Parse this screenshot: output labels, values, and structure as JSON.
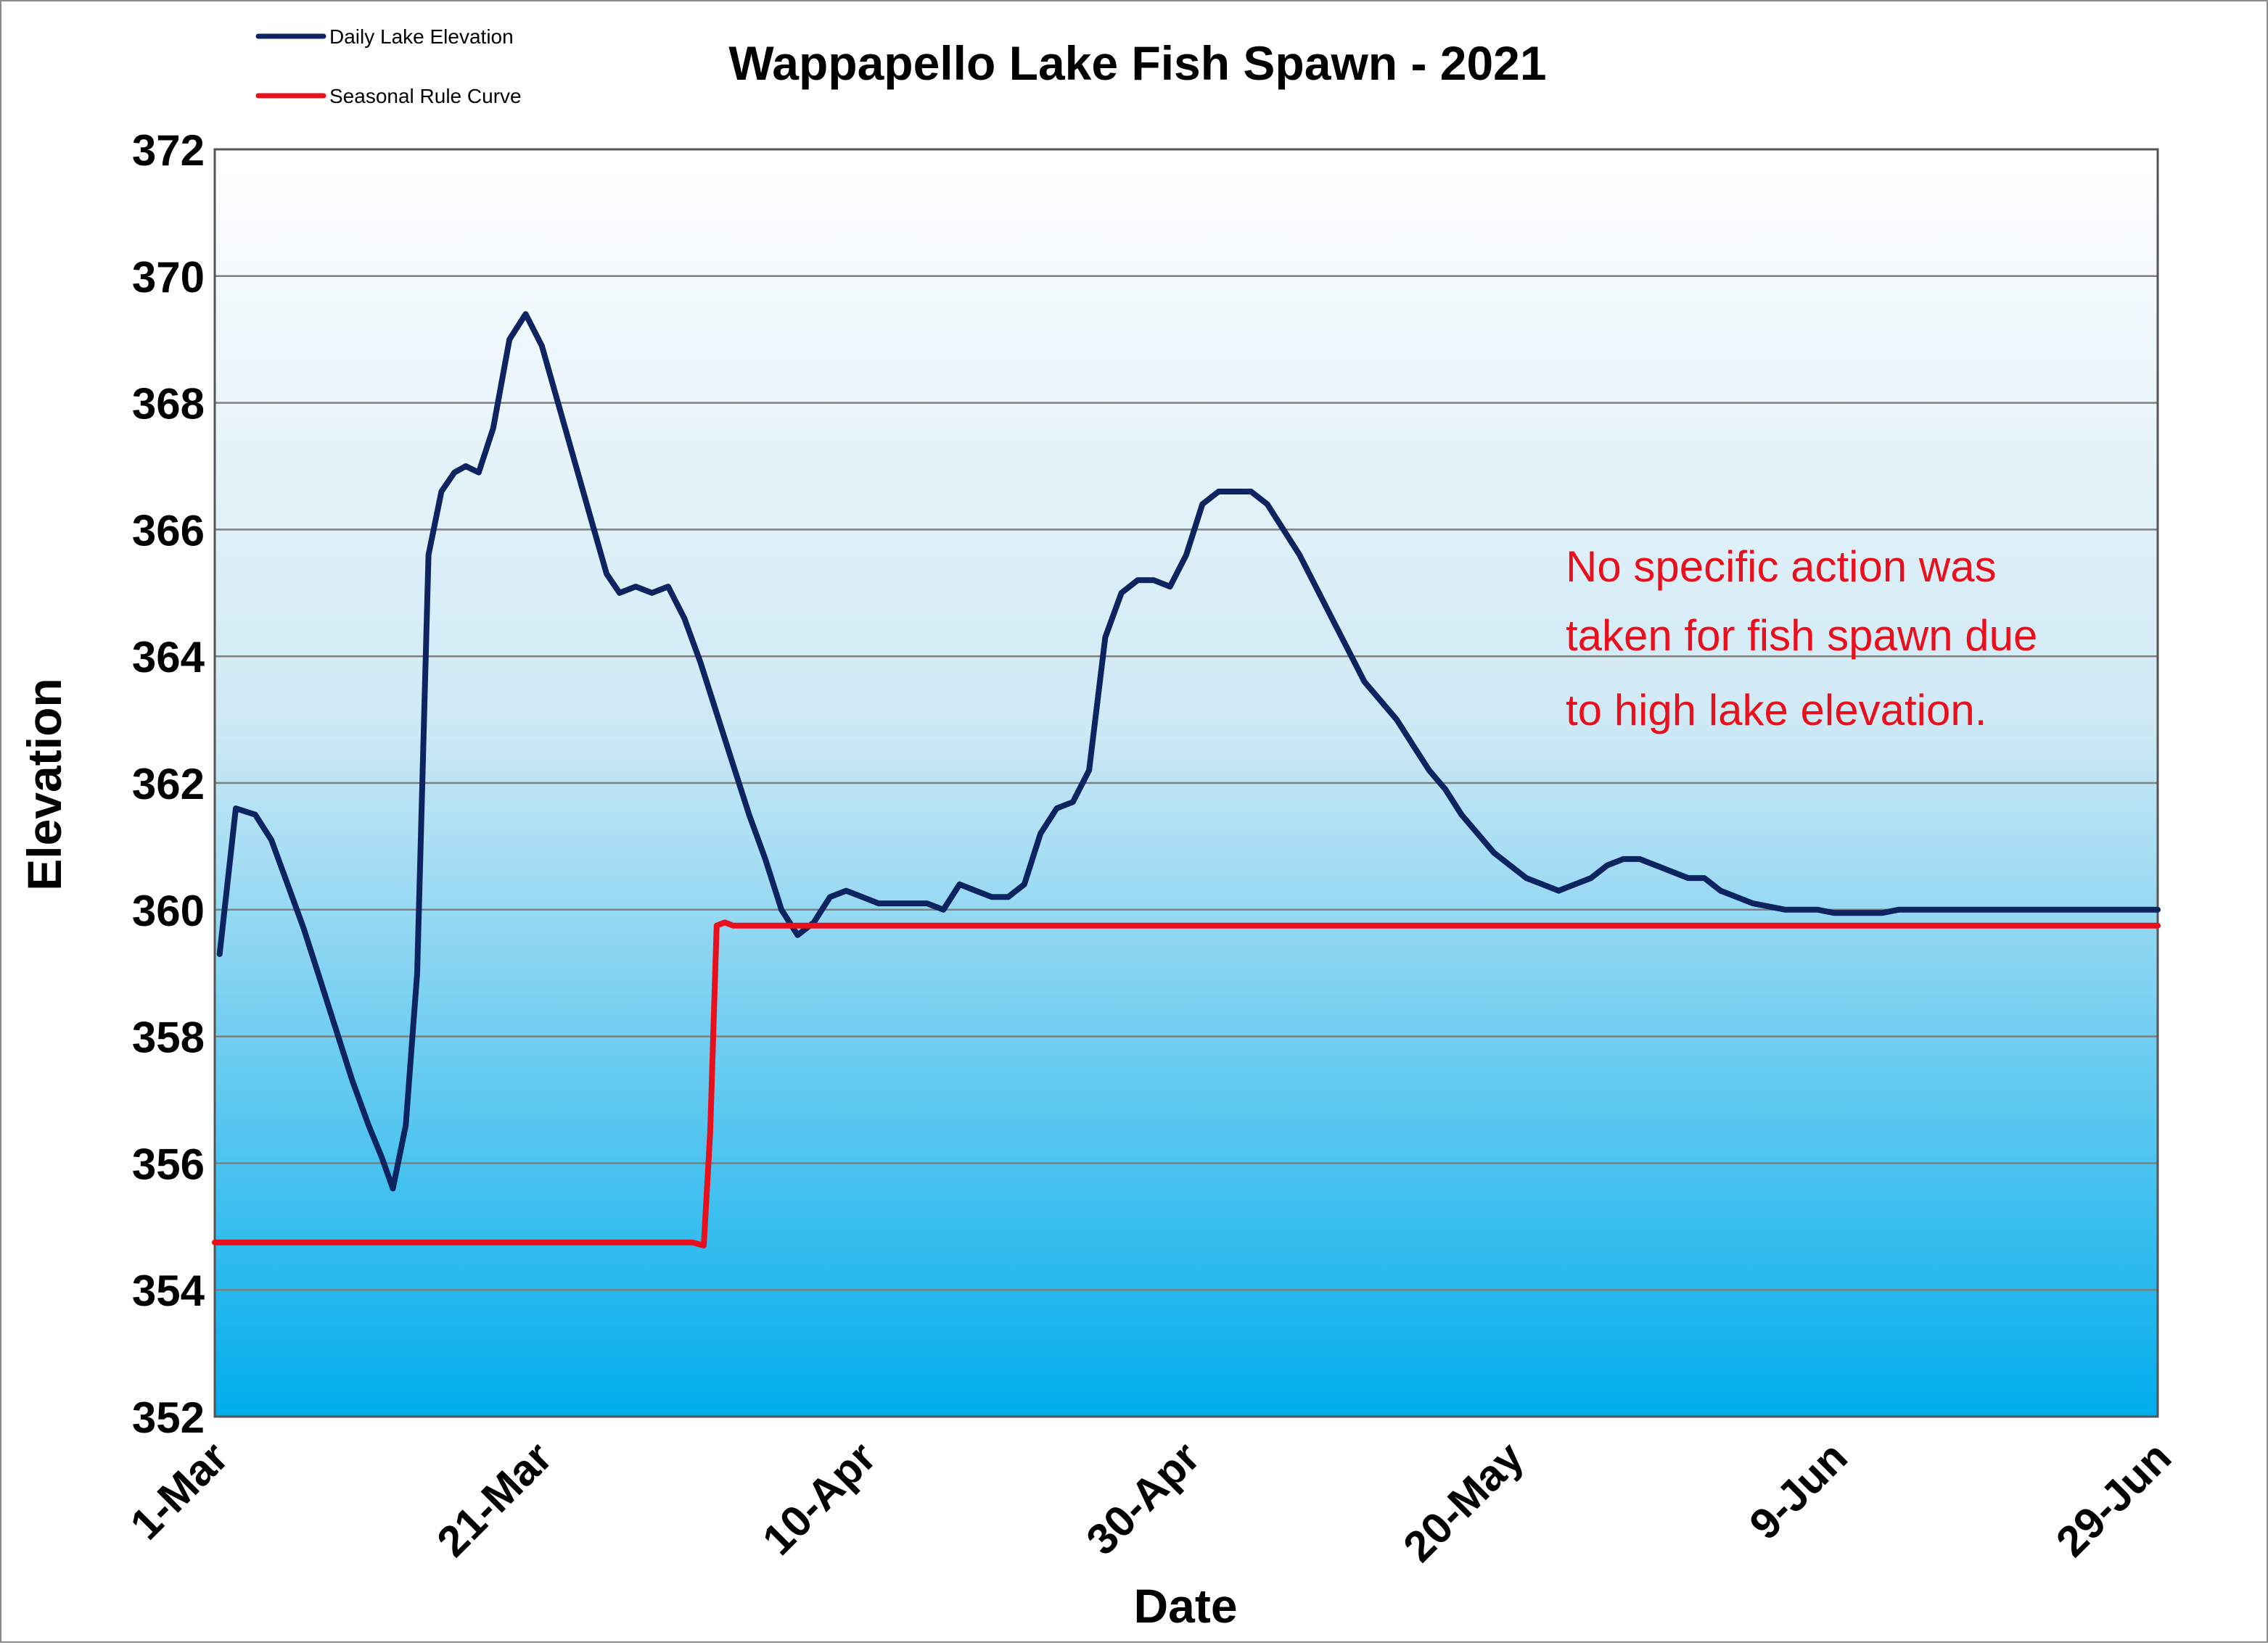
{
  "chart_data": {
    "type": "line",
    "title": "Wappapello Lake Fish Spawn - 2021",
    "xlabel": "Date",
    "ylabel": "Elevation",
    "ylim": [
      352,
      372
    ],
    "yticks": [
      352,
      354,
      356,
      358,
      360,
      362,
      364,
      366,
      368,
      370,
      372
    ],
    "xlim_day": [
      0,
      120
    ],
    "xticks": [
      {
        "day": 0,
        "label": "1-Mar"
      },
      {
        "day": 20,
        "label": "21-Mar"
      },
      {
        "day": 40,
        "label": "10-Apr"
      },
      {
        "day": 60,
        "label": "30-Apr"
      },
      {
        "day": 80,
        "label": "20-May"
      },
      {
        "day": 100,
        "label": "9-Jun"
      },
      {
        "day": 120,
        "label": "29-Jun"
      }
    ],
    "grid": "horizontal",
    "legend_position": "top-left",
    "annotation": {
      "lines": [
        "No specific action was",
        "taken for fish spawn due",
        "to high lake elevation."
      ],
      "color": "#e8101c"
    },
    "series": [
      {
        "name": "Daily Lake Elevation",
        "color": "#0d2461",
        "points": [
          [
            0.3,
            359.3
          ],
          [
            1.3,
            361.6
          ],
          [
            2.5,
            361.5
          ],
          [
            3.5,
            361.1
          ],
          [
            4.5,
            360.4
          ],
          [
            5.5,
            359.7
          ],
          [
            6.5,
            358.9
          ],
          [
            7.5,
            358.1
          ],
          [
            8.5,
            357.3
          ],
          [
            9.5,
            356.6
          ],
          [
            10.3,
            356.1
          ],
          [
            11.0,
            355.6
          ],
          [
            11.8,
            356.6
          ],
          [
            12.5,
            359.0
          ],
          [
            13.2,
            365.6
          ],
          [
            14.0,
            366.6
          ],
          [
            14.8,
            366.9
          ],
          [
            15.5,
            367.0
          ],
          [
            16.3,
            366.9
          ],
          [
            17.2,
            367.6
          ],
          [
            18.2,
            369.0
          ],
          [
            19.2,
            369.4
          ],
          [
            20.2,
            368.9
          ],
          [
            21.2,
            368.0
          ],
          [
            22.2,
            367.1
          ],
          [
            23.2,
            366.2
          ],
          [
            24.2,
            365.3
          ],
          [
            25.0,
            365.0
          ],
          [
            26.0,
            365.1
          ],
          [
            27.0,
            365.0
          ],
          [
            28.0,
            365.1
          ],
          [
            29.0,
            364.6
          ],
          [
            30.0,
            363.9
          ],
          [
            31.0,
            363.1
          ],
          [
            32.0,
            362.3
          ],
          [
            33.0,
            361.5
          ],
          [
            34.0,
            360.8
          ],
          [
            35.0,
            360.0
          ],
          [
            36.0,
            359.6
          ],
          [
            37.0,
            359.8
          ],
          [
            38.0,
            360.2
          ],
          [
            39.0,
            360.3
          ],
          [
            40.0,
            360.2
          ],
          [
            41.0,
            360.1
          ],
          [
            42.0,
            360.1
          ],
          [
            43.0,
            360.1
          ],
          [
            44.0,
            360.1
          ],
          [
            45.0,
            360.0
          ],
          [
            46.0,
            360.4
          ],
          [
            47.0,
            360.3
          ],
          [
            48.0,
            360.2
          ],
          [
            49.0,
            360.2
          ],
          [
            50.0,
            360.4
          ],
          [
            51.0,
            361.2
          ],
          [
            52.0,
            361.6
          ],
          [
            53.0,
            361.7
          ],
          [
            54.0,
            362.2
          ],
          [
            55.0,
            364.3
          ],
          [
            56.0,
            365.0
          ],
          [
            57.0,
            365.2
          ],
          [
            58.0,
            365.2
          ],
          [
            59.0,
            365.1
          ],
          [
            60.0,
            365.6
          ],
          [
            61.0,
            366.4
          ],
          [
            62.0,
            366.6
          ],
          [
            63.0,
            366.6
          ],
          [
            64.0,
            366.6
          ],
          [
            65.0,
            366.4
          ],
          [
            66.0,
            366.0
          ],
          [
            67.0,
            365.6
          ],
          [
            68.0,
            365.1
          ],
          [
            69.0,
            364.6
          ],
          [
            70.0,
            364.1
          ],
          [
            71.0,
            363.6
          ],
          [
            72.0,
            363.3
          ],
          [
            73.0,
            363.0
          ],
          [
            74.0,
            362.6
          ],
          [
            75.0,
            362.2
          ],
          [
            76.0,
            361.9
          ],
          [
            77.0,
            361.5
          ],
          [
            78.0,
            361.2
          ],
          [
            79.0,
            360.9
          ],
          [
            80.0,
            360.7
          ],
          [
            81.0,
            360.5
          ],
          [
            82.0,
            360.4
          ],
          [
            83.0,
            360.3
          ],
          [
            84.0,
            360.4
          ],
          [
            85.0,
            360.5
          ],
          [
            86.0,
            360.7
          ],
          [
            87.0,
            360.8
          ],
          [
            88.0,
            360.8
          ],
          [
            89.0,
            360.7
          ],
          [
            90.0,
            360.6
          ],
          [
            91.0,
            360.5
          ],
          [
            92.0,
            360.5
          ],
          [
            93.0,
            360.3
          ],
          [
            94.0,
            360.2
          ],
          [
            95.0,
            360.1
          ],
          [
            96.0,
            360.05
          ],
          [
            97.0,
            360.0
          ],
          [
            98.0,
            360.0
          ],
          [
            99.0,
            360.0
          ],
          [
            100.0,
            359.95
          ],
          [
            101.0,
            359.95
          ],
          [
            102.0,
            359.95
          ],
          [
            103.0,
            359.95
          ],
          [
            104.0,
            360.0
          ],
          [
            105.0,
            360.0
          ],
          [
            106.0,
            360.0
          ],
          [
            107.0,
            360.0
          ],
          [
            108.0,
            360.0
          ],
          [
            109.0,
            360.0
          ],
          [
            110.0,
            360.0
          ],
          [
            111.0,
            360.0
          ],
          [
            112.0,
            360.0
          ],
          [
            113.0,
            360.0
          ],
          [
            114.0,
            360.0
          ],
          [
            115.0,
            360.0
          ],
          [
            116.0,
            360.0
          ],
          [
            117.0,
            360.0
          ],
          [
            118.0,
            360.0
          ],
          [
            119.0,
            360.0
          ],
          [
            120.0,
            360.0
          ]
        ]
      },
      {
        "name": "Seasonal Rule Curve",
        "color": "#e8101c",
        "points": [
          [
            0,
            354.75
          ],
          [
            29.5,
            354.75
          ],
          [
            30.2,
            354.7
          ],
          [
            30.6,
            356.5
          ],
          [
            31.0,
            359.75
          ],
          [
            31.5,
            359.8
          ],
          [
            32.0,
            359.75
          ],
          [
            120,
            359.75
          ]
        ]
      }
    ]
  }
}
